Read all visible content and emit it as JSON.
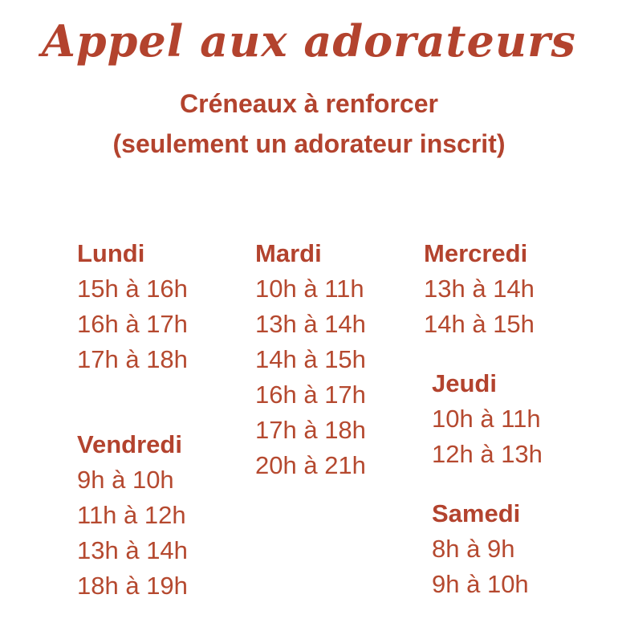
{
  "page": {
    "title": "Appel aux adorateurs",
    "subtitle_line1": "Créneaux à renforcer",
    "subtitle_line2": "(seulement un adorateur inscrit)"
  },
  "colors": {
    "accent": "#b3432e",
    "background": "#ffffff"
  },
  "schedule": {
    "columns": [
      {
        "groups": [
          {
            "day": "Lundi",
            "slots": [
              "15h à 16h",
              "16h à 17h",
              "17h à 18h"
            ]
          },
          {
            "day": "Vendredi",
            "slots": [
              "9h à 10h",
              "11h à 12h",
              "13h à 14h",
              "18h à 19h"
            ]
          }
        ]
      },
      {
        "groups": [
          {
            "day": "Mardi",
            "slots": [
              "10h à 11h",
              "13h à 14h",
              "14h à 15h",
              "16h à 17h",
              "17h à 18h",
              "20h à 21h"
            ]
          }
        ]
      },
      {
        "groups": [
          {
            "day": "Mercredi",
            "slots": [
              "13h à 14h",
              "14h à 15h"
            ]
          },
          {
            "day": "Jeudi",
            "slots": [
              "10h à 11h",
              "12h à 13h"
            ]
          },
          {
            "day": "Samedi",
            "slots": [
              "8h à 9h",
              "9h à 10h"
            ]
          }
        ]
      }
    ]
  }
}
